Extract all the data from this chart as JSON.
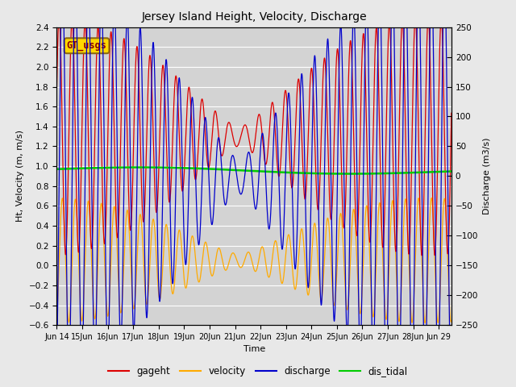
{
  "title": "Jersey Island Height, Velocity, Discharge",
  "xlabel": "Time",
  "ylabel_left": "Ht, Velocity (m, m/s)",
  "ylabel_right": "Discharge (m3/s)",
  "xlim_days": [
    0,
    15.5
  ],
  "ylim_left": [
    -0.6,
    2.4
  ],
  "ylim_right": [
    -250,
    250
  ],
  "yticks_left": [
    -0.6,
    -0.4,
    -0.2,
    0.0,
    0.2,
    0.4,
    0.6,
    0.8,
    1.0,
    1.2,
    1.4,
    1.6,
    1.8,
    2.0,
    2.2,
    2.4
  ],
  "yticks_right": [
    -250,
    -200,
    -150,
    -100,
    -50,
    0,
    50,
    100,
    150,
    200,
    250
  ],
  "xtick_labels": [
    "Jun 14",
    "15Jun",
    "16Jun",
    "17Jun",
    "18Jun",
    "19Jun",
    "20Jun",
    "21Jun",
    "22Jun",
    "23Jun",
    "24Jun",
    "25Jun",
    "26Jun",
    "27Jun",
    "28Jun",
    "Jun 29"
  ],
  "xtick_positions": [
    0,
    1,
    2,
    3,
    4,
    5,
    6,
    7,
    8,
    9,
    10,
    11,
    12,
    13,
    14,
    15
  ],
  "legend_labels": [
    "gageht",
    "velocity",
    "discharge",
    "dis_tidal"
  ],
  "legend_colors": [
    "#dd0000",
    "#ffaa00",
    "#0000cc",
    "#00cc00"
  ],
  "gt_usgs_label": "GT_usgs",
  "plot_bg_color": "#d3d3d3",
  "fig_bg_color": "#e8e8e8",
  "tidal_period_hours": 12.42,
  "s2_period_hours": 12.0,
  "total_days": 15.5,
  "dt_hours": 0.1
}
